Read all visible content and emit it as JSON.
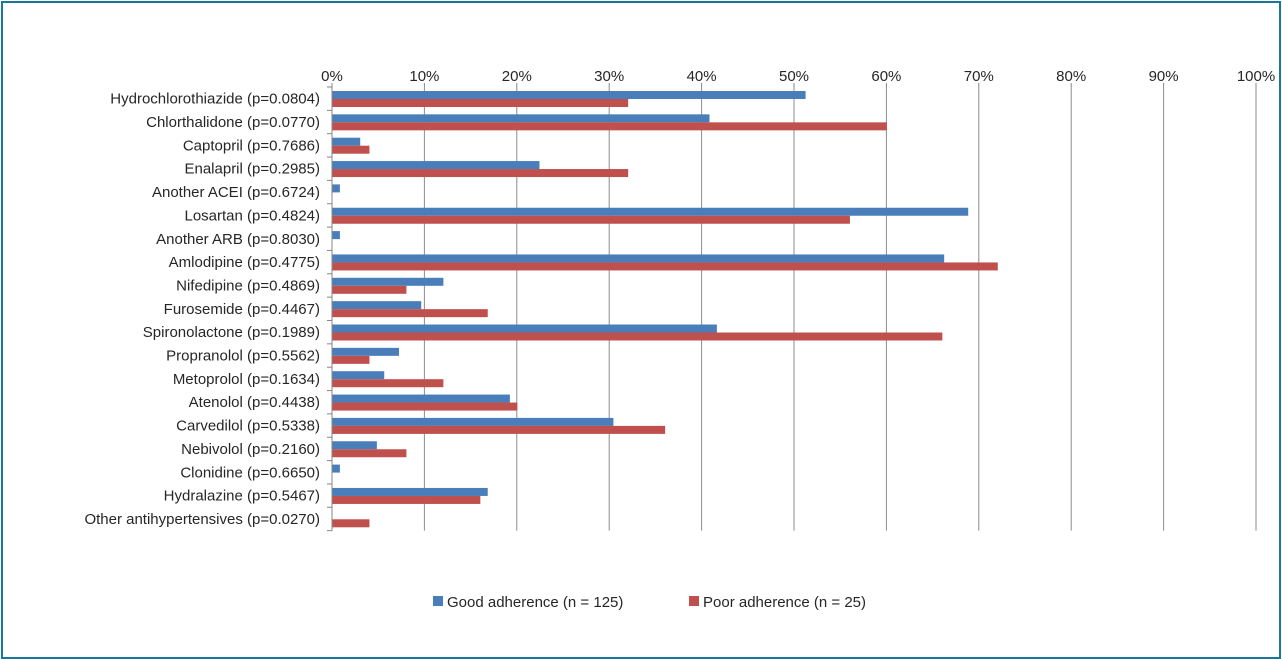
{
  "chart_data": {
    "type": "bar",
    "orientation": "horizontal",
    "categories": [
      "Hydrochlorothiazide (p=0.0804)",
      "Chlorthalidone (p=0.0770)",
      "Captopril (p=0.7686)",
      "Enalapril (p=0.2985)",
      "Another ACEI (p=0.6724)",
      "Losartan (p=0.4824)",
      "Another ARB (p=0.8030)",
      "Amlodipine (p=0.4775)",
      "Nifedipine (p=0.4869)",
      "Furosemide (p=0.4467)",
      "Spironolactone (p=0.1989)",
      "Propranolol (p=0.5562)",
      "Metoprolol (p=0.1634)",
      "Atenolol (p=0.4438)",
      "Carvedilol (p=0.5338)",
      "Nebivolol (p=0.2160)",
      "Clonidine (p=0.6650)",
      "Hydralazine (p=0.5467)",
      "Other antihypertensives (p=0.0270)"
    ],
    "series": [
      {
        "name": "Good adherence (n = 125)",
        "color": "#4a7ebb",
        "values": [
          51.2,
          40.8,
          3.0,
          22.4,
          0.8,
          68.8,
          0.8,
          66.2,
          12.0,
          9.6,
          41.6,
          7.2,
          5.6,
          19.2,
          30.4,
          4.8,
          0.8,
          16.8,
          0.0
        ]
      },
      {
        "name": "Poor adherence (n = 25)",
        "color": "#c0504d",
        "values": [
          32,
          60,
          4,
          32,
          0,
          56,
          0,
          72,
          8,
          16.8,
          66,
          4,
          12,
          20,
          36,
          8,
          0,
          16,
          4
        ]
      }
    ],
    "xlim": [
      0,
      100
    ],
    "xticks": [
      "0%",
      "10%",
      "20%",
      "30%",
      "40%",
      "50%",
      "60%",
      "70%",
      "80%",
      "90%",
      "100%"
    ],
    "x_axis_position": "top",
    "grid": true,
    "legend_position": "bottom",
    "title": "",
    "xlabel": "",
    "ylabel": ""
  }
}
